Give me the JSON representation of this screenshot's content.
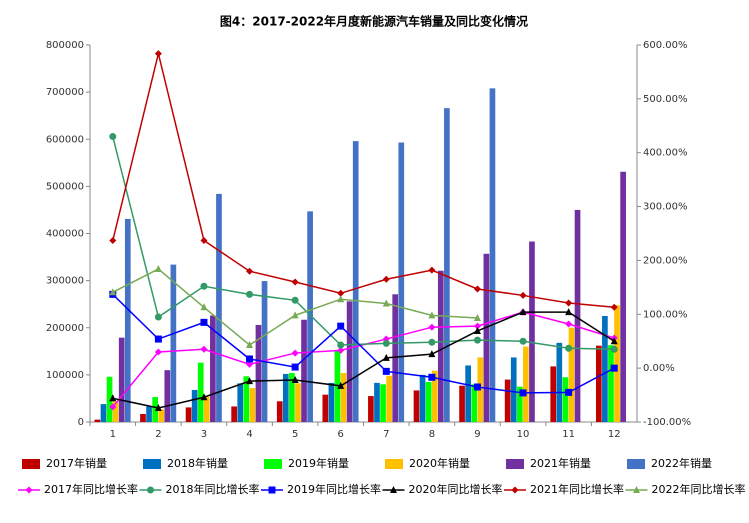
{
  "chart_data": {
    "type": "bar",
    "title": "图4：2017-2022年月度新能源汽车销量及同比变化情况",
    "categories": [
      1,
      2,
      3,
      4,
      5,
      6,
      7,
      8,
      9,
      10,
      11,
      12
    ],
    "ylim": [
      0,
      800000
    ],
    "yticks": [
      0,
      100000,
      200000,
      300000,
      400000,
      500000,
      600000,
      700000,
      800000
    ],
    "y2lim": [
      -100,
      600
    ],
    "y2ticks": [
      {
        "value": -100,
        "label": "-100.00%"
      },
      {
        "value": 0,
        "label": "0.00%"
      },
      {
        "value": 100,
        "label": "100.00%"
      },
      {
        "value": 200,
        "label": "200.00%"
      },
      {
        "value": 300,
        "label": "300.00%"
      },
      {
        "value": 400,
        "label": "400.00%"
      },
      {
        "value": 500,
        "label": "500.00%"
      },
      {
        "value": 600,
        "label": "600.00%"
      }
    ],
    "legend": "bottom",
    "series": [
      {
        "name": "2017年销量",
        "type": "bar",
        "color": "#c00000",
        "values": [
          5000,
          17000,
          31000,
          33000,
          44000,
          58000,
          55000,
          67000,
          77000,
          90000,
          118000,
          162000
        ]
      },
      {
        "name": "2018年销量",
        "type": "bar",
        "color": "#0070c0",
        "values": [
          38000,
          33000,
          68000,
          82000,
          102000,
          83000,
          83000,
          100000,
          120000,
          137000,
          168000,
          225000
        ]
      },
      {
        "name": "2019年销量",
        "type": "bar",
        "color": "#00ff00",
        "values": [
          96000,
          53000,
          126000,
          97000,
          104000,
          152000,
          80000,
          85000,
          80000,
          75000,
          95000,
          163000
        ]
      },
      {
        "name": "2020年销量",
        "type": "bar",
        "color": "#ffc000",
        "values": [
          44000,
          27000,
          53000,
          72000,
          82000,
          104000,
          98000,
          109000,
          137000,
          160000,
          200000,
          248000
        ]
      },
      {
        "name": "2021年销量",
        "type": "bar",
        "color": "#7030a0",
        "values": [
          179000,
          110000,
          226000,
          206000,
          217000,
          256000,
          271000,
          321000,
          357000,
          383000,
          450000,
          531000
        ]
      },
      {
        "name": "2022年销量",
        "type": "bar",
        "color": "#4472c4",
        "values": [
          431000,
          334000,
          484000,
          299000,
          447000,
          596000,
          593000,
          666000,
          708000,
          null,
          null,
          null
        ]
      },
      {
        "name": "2017年同比增长率",
        "type": "line",
        "axis": "y2",
        "marker": "diamond",
        "color": "#ff00ff",
        "values": [
          -72,
          30,
          35,
          7,
          28,
          33,
          54,
          76,
          78,
          104,
          82,
          56
        ]
      },
      {
        "name": "2018年同比增长率",
        "type": "line",
        "axis": "y2",
        "marker": "circle",
        "color": "#339966",
        "values": [
          430,
          95,
          152,
          137,
          126,
          43,
          46,
          48,
          52,
          50,
          37,
          35
        ]
      },
      {
        "name": "2019年同比增长率",
        "type": "line",
        "axis": "y2",
        "marker": "square",
        "color": "#0000ff",
        "values": [
          137,
          54,
          85,
          17,
          2,
          78,
          -6,
          -17,
          -35,
          -46,
          -45,
          0
        ]
      },
      {
        "name": "2020年同比增长率",
        "type": "line",
        "axis": "y2",
        "marker": "triangle",
        "color": "#000000",
        "values": [
          -56,
          -74,
          -54,
          -24,
          -22,
          -33,
          19,
          26,
          69,
          104,
          104,
          50
        ]
      },
      {
        "name": "2021年同比增长率",
        "type": "line",
        "axis": "y2",
        "marker": "diamond",
        "color": "#c00000",
        "values": [
          237,
          584,
          237,
          180,
          160,
          139,
          165,
          182,
          147,
          135,
          121,
          113
        ]
      },
      {
        "name": "2022年同比增长率",
        "type": "line",
        "axis": "y2",
        "marker": "triangle",
        "color": "#77aa55",
        "values": [
          141,
          184,
          113,
          43,
          98,
          128,
          120,
          98,
          93,
          null,
          null,
          null
        ]
      }
    ]
  }
}
